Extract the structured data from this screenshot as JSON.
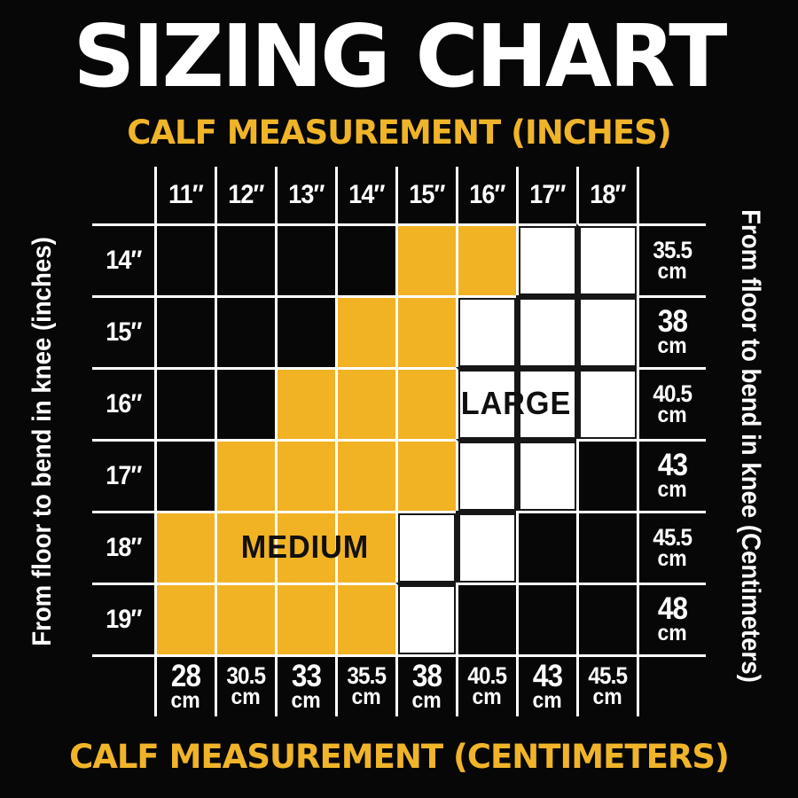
{
  "title": "SIZING CHART",
  "axes": {
    "top": "CALF MEASUREMENT (INCHES)",
    "bottom": "CALF MEASUREMENT (CENTIMETERS)",
    "left": "From floor to bend in knee (inches)",
    "right": "From floor to bend in knee (Centimeters)"
  },
  "colors": {
    "background": "#070707",
    "yellow_cell": "#F1B224",
    "yellow_text": "#F0B429",
    "white_cell": "#FFFFFF",
    "grid_line": "#FFFFFF",
    "white_cell_outline": "#161616",
    "zone_text": "#101010"
  },
  "chart_data": {
    "type": "heatmap",
    "title": "SIZING CHART",
    "x_top_axis_label": "CALF MEASUREMENT (INCHES)",
    "x_bottom_axis_label": "CALF MEASUREMENT (CENTIMETERS)",
    "y_left_axis_label": "From floor to bend in knee (inches)",
    "y_right_axis_label": "From floor to bend in knee (Centimeters)",
    "x_top_ticks": [
      "11″",
      "12″",
      "13″",
      "14″",
      "15″",
      "16″",
      "17″",
      "18″"
    ],
    "y_left_ticks": [
      "14″",
      "15″",
      "16″",
      "17″",
      "18″",
      "19″"
    ],
    "y_right_ticks": [
      {
        "value": "35.5",
        "unit": "cm",
        "emph": false
      },
      {
        "value": "38",
        "unit": "cm",
        "emph": true
      },
      {
        "value": "40.5",
        "unit": "cm",
        "emph": false
      },
      {
        "value": "43",
        "unit": "cm",
        "emph": true
      },
      {
        "value": "45.5",
        "unit": "cm",
        "emph": false
      },
      {
        "value": "48",
        "unit": "cm",
        "emph": true
      }
    ],
    "x_bottom_ticks": [
      {
        "value": "28",
        "unit": "cm",
        "emph": true
      },
      {
        "value": "30.5",
        "unit": "cm",
        "emph": false
      },
      {
        "value": "33",
        "unit": "cm",
        "emph": true
      },
      {
        "value": "35.5",
        "unit": "cm",
        "emph": false
      },
      {
        "value": "38",
        "unit": "cm",
        "emph": true
      },
      {
        "value": "40.5",
        "unit": "cm",
        "emph": false
      },
      {
        "value": "43",
        "unit": "cm",
        "emph": true
      },
      {
        "value": "45.5",
        "unit": "cm",
        "emph": false
      }
    ],
    "cells": [
      [
        "black",
        "black",
        "black",
        "black",
        "yellow",
        "yellow",
        "white",
        "white"
      ],
      [
        "black",
        "black",
        "black",
        "yellow",
        "yellow",
        "white",
        "white",
        "white"
      ],
      [
        "black",
        "black",
        "yellow",
        "yellow",
        "yellow",
        "white",
        "white",
        "white"
      ],
      [
        "black",
        "yellow",
        "yellow",
        "yellow",
        "yellow",
        "white",
        "white",
        "black"
      ],
      [
        "yellow",
        "yellow",
        "yellow",
        "yellow",
        "white",
        "white",
        "black",
        "black"
      ],
      [
        "yellow",
        "yellow",
        "yellow",
        "yellow",
        "white",
        "black",
        "black",
        "black"
      ]
    ],
    "zone_labels": [
      {
        "text": "LARGE",
        "fill": "white",
        "row_index": 2,
        "col_start": 5,
        "col_span": 2
      },
      {
        "text": "MEDIUM",
        "fill": "yellow",
        "row_index": 4,
        "col_start": 1,
        "col_span": 3
      }
    ],
    "legend": [
      {
        "label": "MEDIUM",
        "color_key": "yellow_cell"
      },
      {
        "label": "LARGE",
        "color_key": "white_cell"
      }
    ],
    "grid": true
  }
}
